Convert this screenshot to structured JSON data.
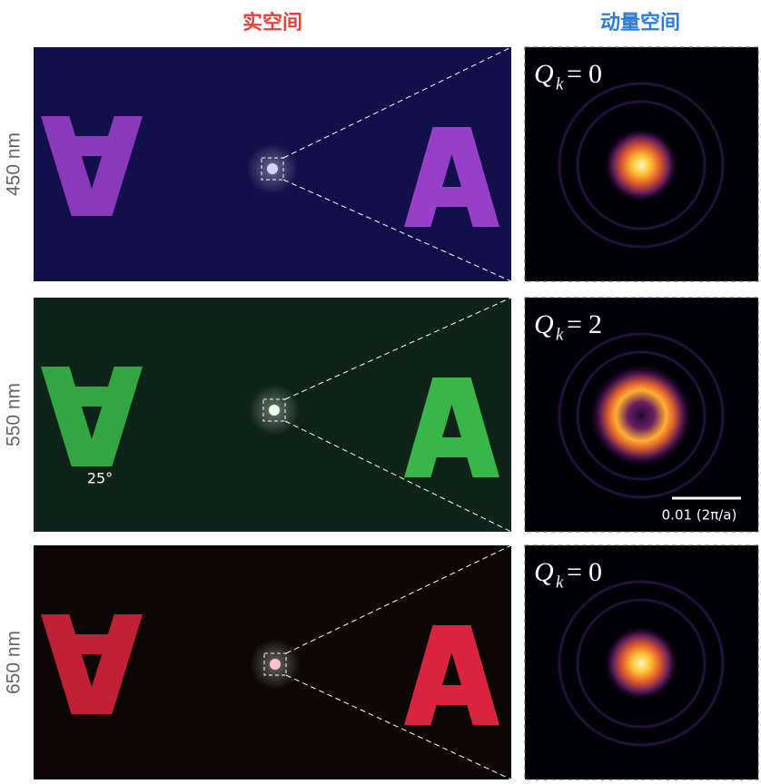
{
  "column_titles": {
    "real_space": "实空间",
    "momentum_space": "动量空间"
  },
  "rows": [
    {
      "wavelength": "450 nm",
      "q_symbol": "Q",
      "q_subscript": "k",
      "q_relation": "=",
      "q_value": "0"
    },
    {
      "wavelength": "550 nm",
      "q_symbol": "Q",
      "q_subscript": "k",
      "q_relation": "=",
      "q_value": "2",
      "angle_label": "25°",
      "scale_bar_label": "0.01 (2π/a)"
    },
    {
      "wavelength": "650 nm",
      "q_symbol": "Q",
      "q_subscript": "k",
      "q_relation": "=",
      "q_value": "0"
    }
  ]
}
